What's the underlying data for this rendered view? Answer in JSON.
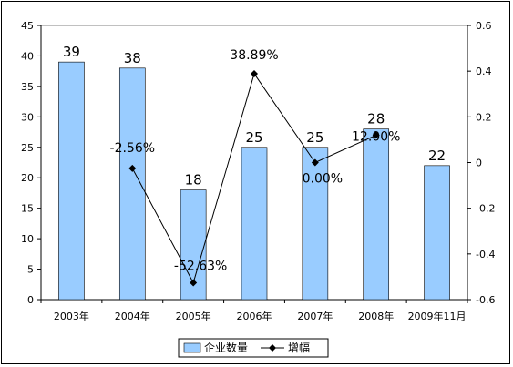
{
  "chart_data": {
    "type": "bar",
    "categories": [
      "2003年",
      "2004年",
      "2005年",
      "2006年",
      "2007年",
      "2008年",
      "2009年11月"
    ],
    "series": [
      {
        "name": "企业数量",
        "type": "bar",
        "axis": "left",
        "values": [
          39,
          38,
          18,
          25,
          25,
          28,
          22
        ],
        "labels": [
          "39",
          "38",
          "18",
          "25",
          "25",
          "28",
          "22"
        ],
        "color": "#99ccff"
      },
      {
        "name": "增幅",
        "type": "line",
        "axis": "right",
        "values": [
          null,
          -0.0256,
          -0.5263,
          0.3889,
          0.0,
          0.12,
          null
        ],
        "labels": [
          null,
          "-2.56%",
          "-52.63%",
          "38.89%",
          "0.00%",
          "12.00%",
          null
        ],
        "color": "#000000"
      }
    ],
    "y_left": {
      "min": 0,
      "max": 45,
      "step": 5,
      "ticks": [
        "0",
        "5",
        "10",
        "15",
        "20",
        "25",
        "30",
        "35",
        "40",
        "45"
      ]
    },
    "y_right": {
      "min": -0.6,
      "max": 0.6,
      "step": 0.2,
      "ticks": [
        "-0.6",
        "-0.4",
        "-0.2",
        "0",
        "0.2",
        "0.4",
        "0.6"
      ]
    },
    "legend_position": "bottom",
    "grid": false
  }
}
